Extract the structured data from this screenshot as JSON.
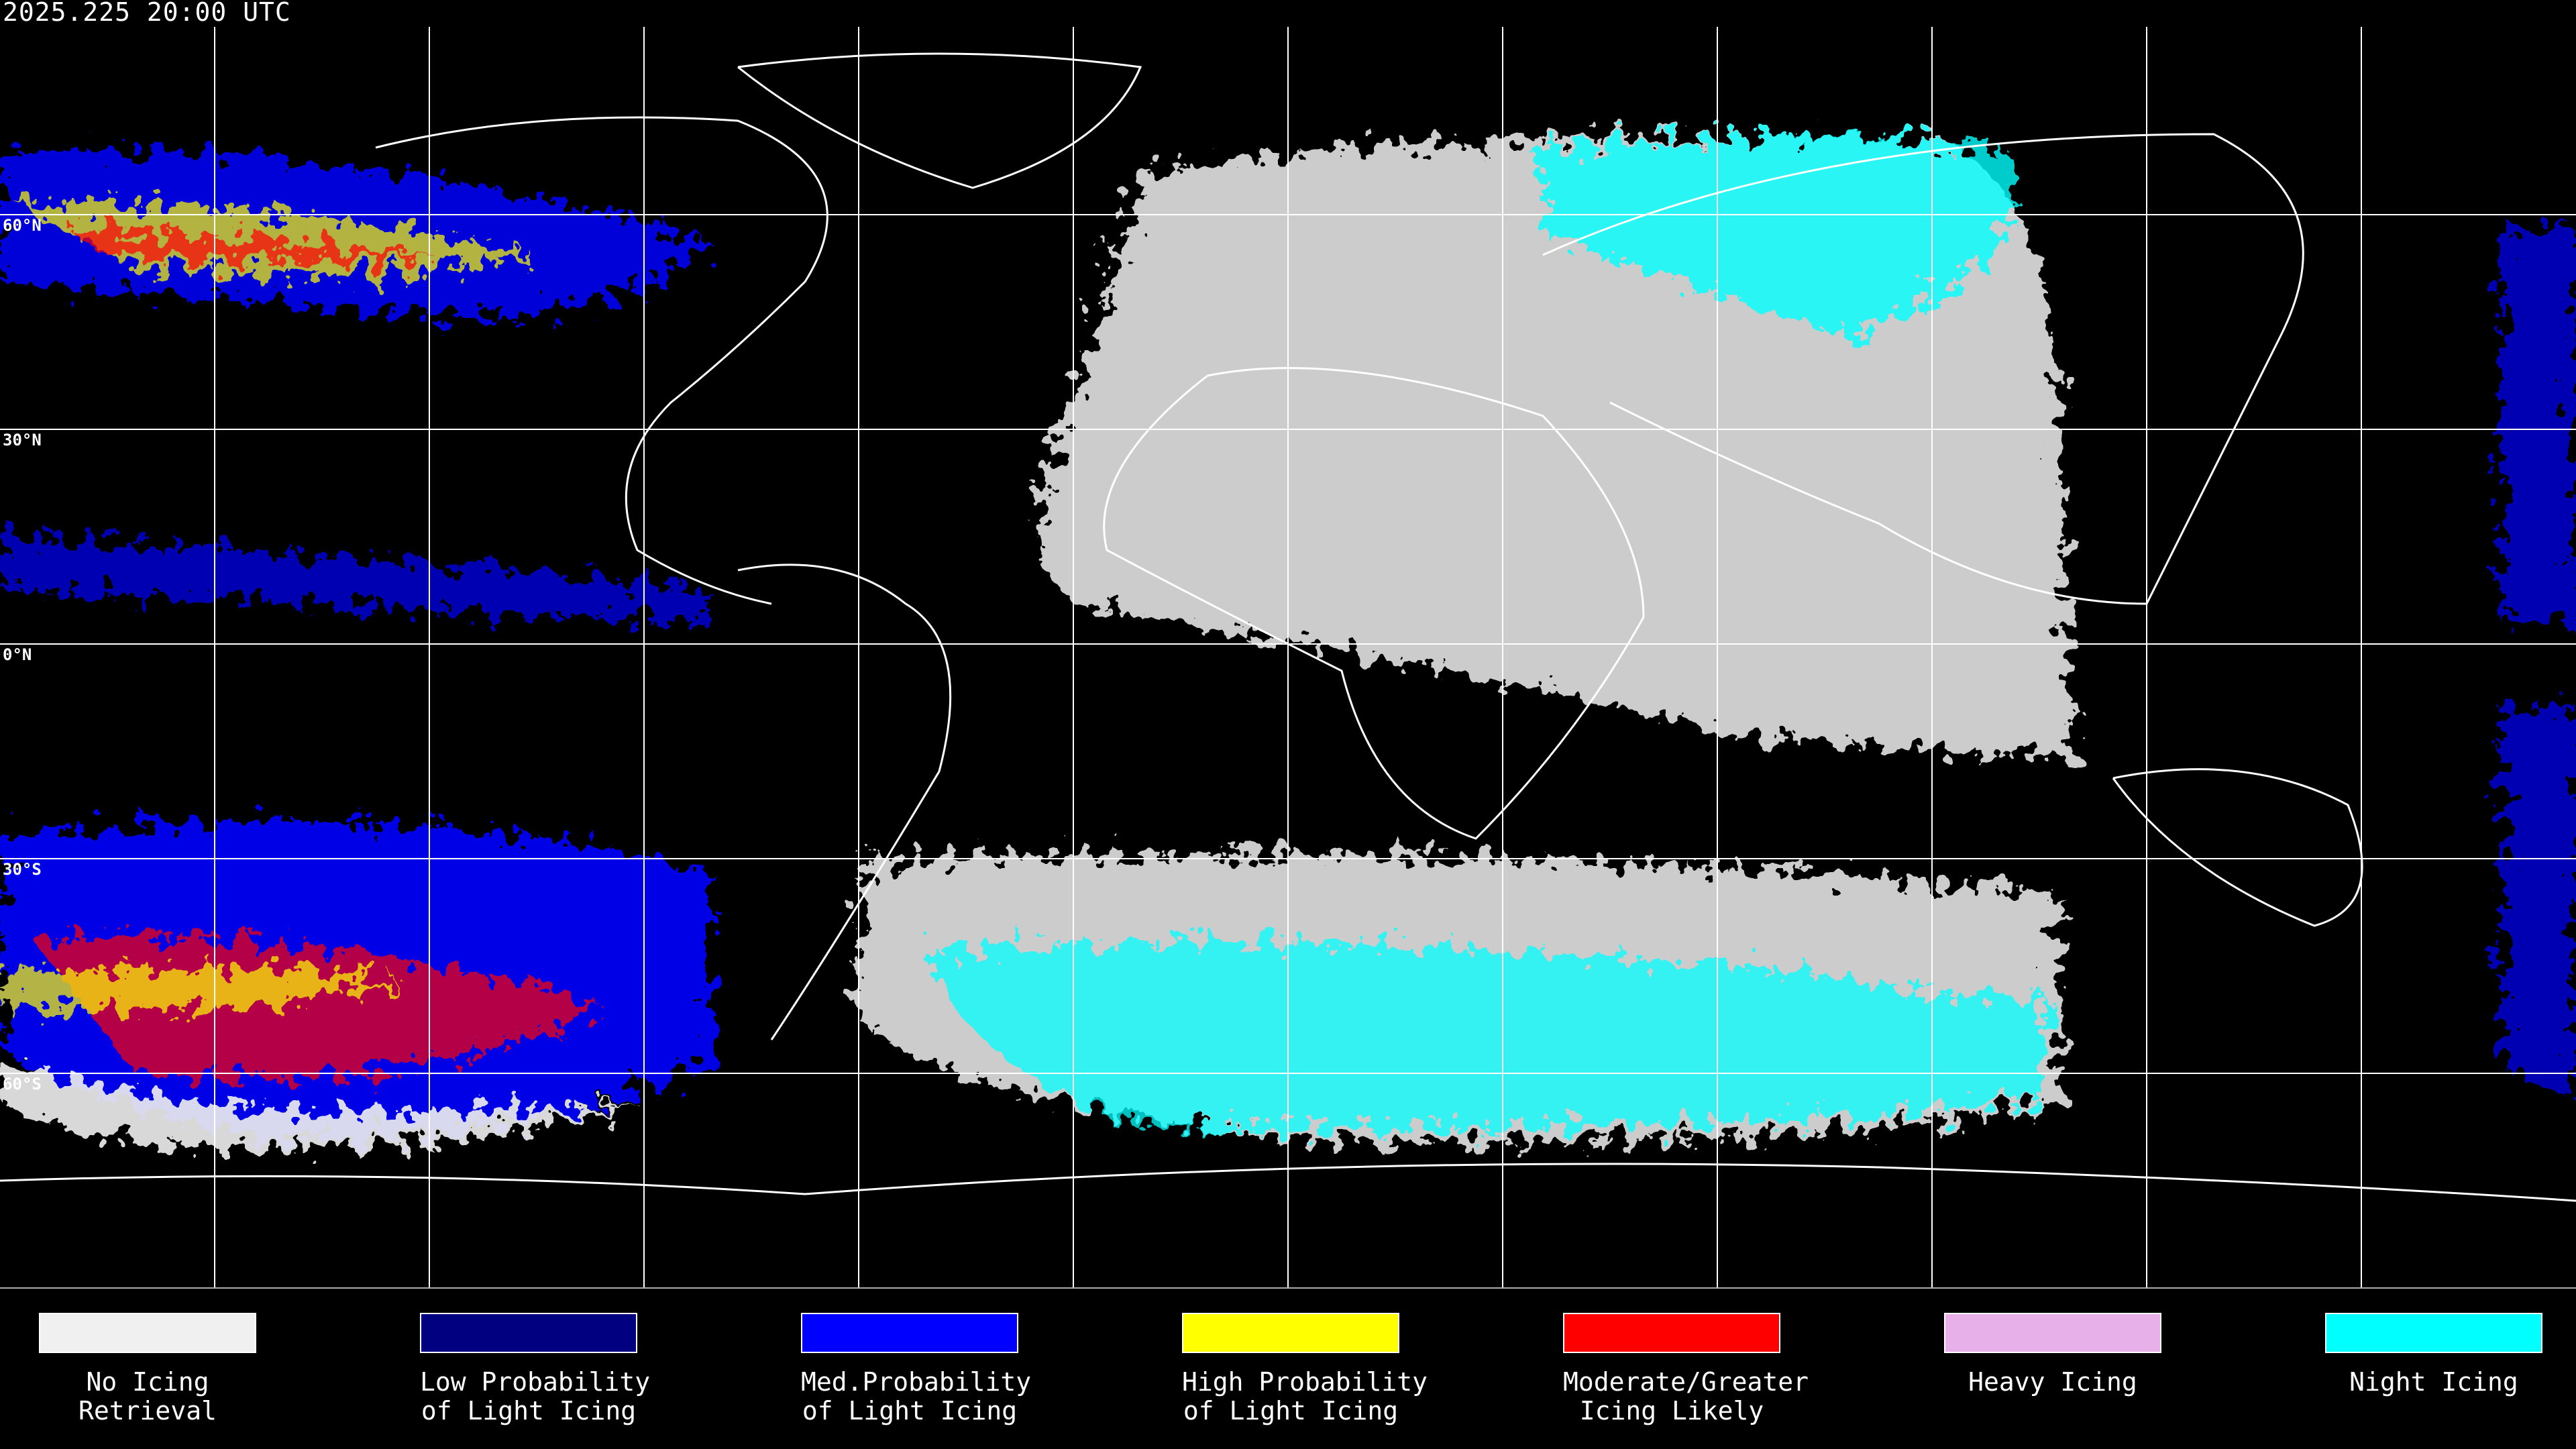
{
  "header": {
    "timestamp": "2025.225 20:00 UTC"
  },
  "map": {
    "projection": "equirectangular",
    "latitude_labels": [
      "60°N",
      "30°N",
      "0°N",
      "30°S",
      "60°S"
    ],
    "grid_spacing_degrees": 30,
    "background_color": "#000000",
    "coastline_color": "#ffffff"
  },
  "legend": [
    {
      "line1": "No Icing",
      "line2": "Retrieval",
      "color": "#f0f0f0"
    },
    {
      "line1": "Low Probability",
      "line2": "of Light Icing",
      "color": "#000080"
    },
    {
      "line1": "Med.Probability",
      "line2": "of Light Icing",
      "color": "#0000ff"
    },
    {
      "line1": "High Probability",
      "line2": "of Light Icing",
      "color": "#ffff00"
    },
    {
      "line1": "Moderate/Greater",
      "line2": "Icing Likely",
      "color": "#ff0000"
    },
    {
      "line1": "Heavy Icing",
      "line2": "",
      "color": "#e8b0e8"
    },
    {
      "line1": "Night Icing",
      "line2": "",
      "color": "#00ffff"
    }
  ]
}
